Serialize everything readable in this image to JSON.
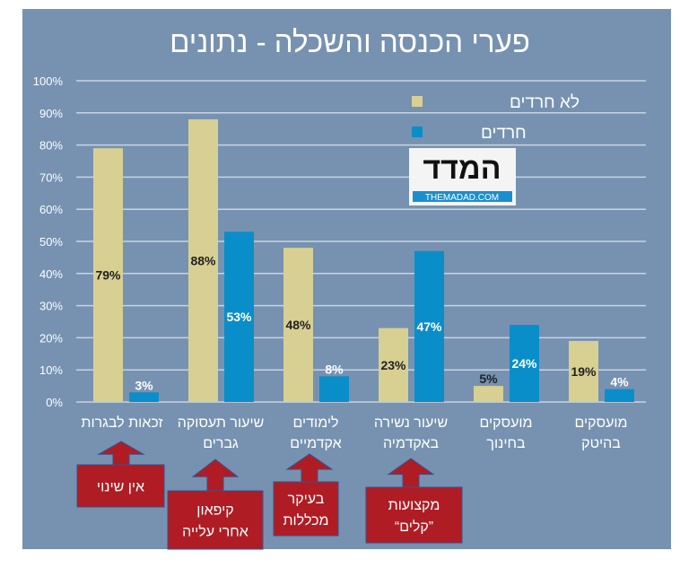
{
  "chart_data": {
    "type": "bar",
    "title": "פערי הכנסה והשכלה - נתונים",
    "categories": [
      [
        "זכאות לבגרות"
      ],
      [
        "שיעור תעסוקה",
        "גברים"
      ],
      [
        "לימודים",
        "אקדמיים"
      ],
      [
        "שיעור נשירה",
        "באקדמיה"
      ],
      [
        "מועסקים",
        "בחינוך"
      ],
      [
        "מועסקים",
        "בהיטק"
      ]
    ],
    "series": [
      {
        "name": "לא חרדים",
        "color": "#d8cf93",
        "values": [
          79,
          88,
          48,
          23,
          5,
          19
        ]
      },
      {
        "name": "חרדים",
        "color": "#0a8ec9",
        "values": [
          3,
          53,
          8,
          47,
          24,
          4
        ]
      }
    ],
    "data_labels": [
      [
        "79%",
        "88%",
        "48%",
        "23%",
        "5%",
        "19%"
      ],
      [
        "3%",
        "53%",
        "8%",
        "47%",
        "24%",
        "4%"
      ]
    ],
    "ylim": [
      0,
      100
    ],
    "yticks": [
      "0%",
      "10%",
      "20%",
      "30%",
      "40%",
      "50%",
      "60%",
      "70%",
      "80%",
      "90%",
      "100%"
    ],
    "grid": true,
    "legend": "top-right",
    "background": "#7692b0",
    "annotations": [
      {
        "category": 0,
        "lines": [
          "אין שינוי"
        ]
      },
      {
        "category": 1,
        "lines": [
          "קיפאון",
          "אחרי עלייה"
        ]
      },
      {
        "category": 2,
        "lines": [
          "בעיקר",
          "מכללות"
        ]
      },
      {
        "category": 3,
        "lines": [
          "מקצועות",
          "”קלים“"
        ]
      }
    ],
    "annotation_color": "#b01c24"
  },
  "logo": {
    "text": "המדד",
    "url_text": "THEMADAD.COM"
  }
}
